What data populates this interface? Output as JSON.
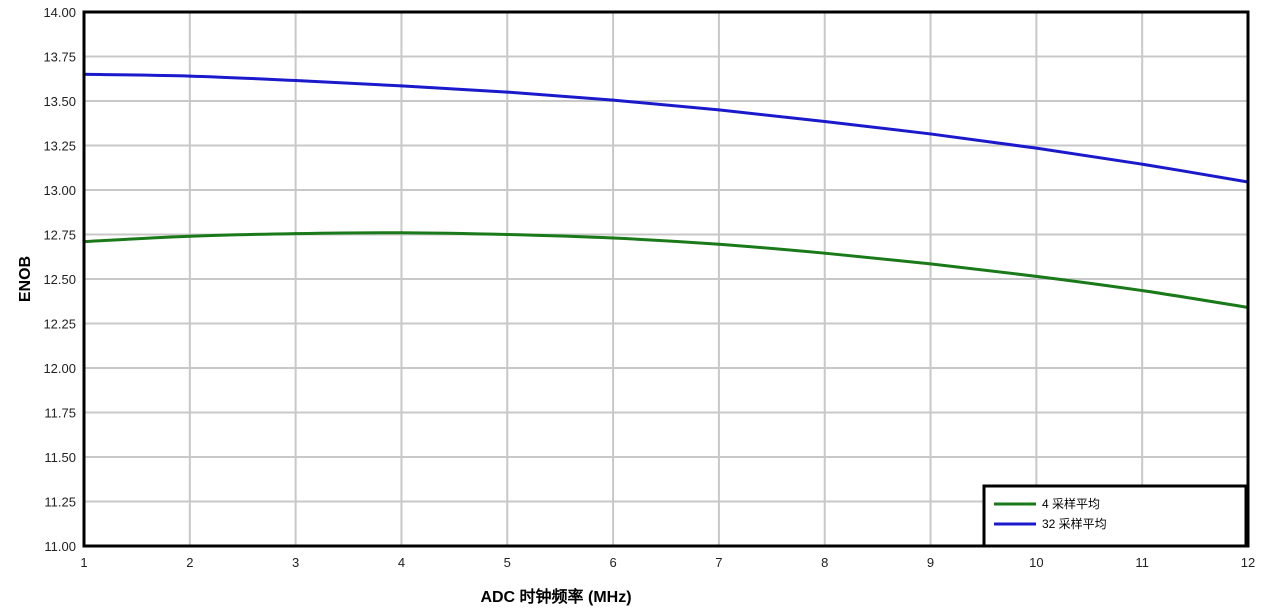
{
  "chart_data": {
    "type": "line",
    "xlabel": "ADC 时钟频率 (MHz)",
    "ylabel": "ENOB",
    "xlim": [
      1,
      12
    ],
    "ylim": [
      11.0,
      14.0
    ],
    "xticks": [
      "1",
      "2",
      "3",
      "4",
      "5",
      "6",
      "7",
      "8",
      "9",
      "10",
      "11",
      "12"
    ],
    "yticks": [
      "11.00",
      "11.25",
      "11.50",
      "11.75",
      "12.00",
      "12.25",
      "12.50",
      "12.75",
      "13.00",
      "13.25",
      "13.50",
      "13.75",
      "14.00"
    ],
    "grid": true,
    "legend_position": "bottom-right",
    "x": [
      1,
      2,
      3,
      4,
      5,
      6,
      7,
      8,
      9,
      10,
      11,
      12
    ],
    "series": [
      {
        "name": "4 采样平均",
        "color": "#1a7a1a",
        "values": [
          12.71,
          12.74,
          12.755,
          12.76,
          12.75,
          12.73,
          12.695,
          12.645,
          12.585,
          12.515,
          12.435,
          12.34
        ]
      },
      {
        "name": "32 采样平均",
        "color": "#1a1acc",
        "values": [
          13.65,
          13.64,
          13.615,
          13.585,
          13.55,
          13.505,
          13.45,
          13.385,
          13.315,
          13.235,
          13.145,
          13.045
        ]
      }
    ]
  }
}
